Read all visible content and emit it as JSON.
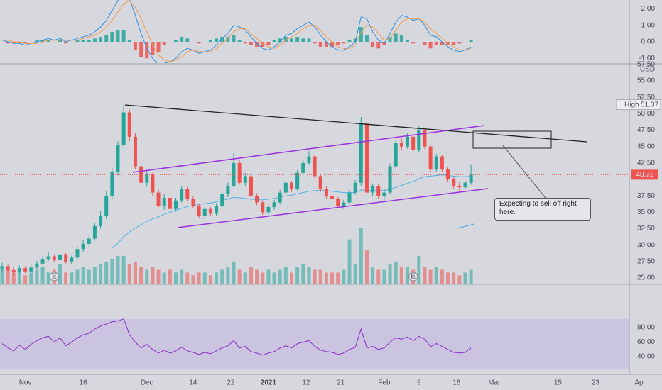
{
  "screen": {
    "price_ticks": [
      {
        "value": 55,
        "label": "55.00"
      },
      {
        "value": 52.5,
        "label": "52.50"
      },
      {
        "value": 50,
        "label": "50.00"
      },
      {
        "value": 47.5,
        "label": "47.50"
      },
      {
        "value": 45,
        "label": "45.00"
      },
      {
        "value": 42.5,
        "label": "42.50"
      },
      {
        "value": 37.5,
        "label": "37.50"
      },
      {
        "value": 35,
        "label": "35.00"
      },
      {
        "value": 32.5,
        "label": "32.50"
      },
      {
        "value": 30,
        "label": "30.00"
      },
      {
        "value": 27.5,
        "label": "27.50"
      },
      {
        "value": 25,
        "label": "25.00"
      }
    ],
    "top_partial_tick": {
      "value": 57.5,
      "label": "57.50"
    },
    "currency": "USD",
    "last_price": {
      "value": 40.72,
      "label": "40.72"
    },
    "high_tag": {
      "text": "High",
      "value": 51.37
    },
    "macd_ticks": [
      {
        "value": 2,
        "label": "2.00"
      },
      {
        "value": 1,
        "label": "1.00"
      },
      {
        "value": 0,
        "label": "0.00"
      },
      {
        "value": -1,
        "label": "-1.00"
      }
    ],
    "rsi_ticks": [
      {
        "value": 80,
        "label": "80.00"
      },
      {
        "value": 60,
        "label": "60.00"
      },
      {
        "value": 40,
        "label": "40.00"
      }
    ],
    "date_ticks": [
      {
        "value": 4,
        "label": "Nov"
      },
      {
        "value": 14,
        "label": "16"
      },
      {
        "value": 25,
        "label": "Dec"
      },
      {
        "value": 33,
        "label": "14"
      },
      {
        "value": 39.5,
        "label": "22"
      },
      {
        "value": 46,
        "label": "2021"
      },
      {
        "value": 52.5,
        "label": "12"
      },
      {
        "value": 58.5,
        "label": "21"
      },
      {
        "value": 66,
        "label": "Feb"
      },
      {
        "value": 72,
        "label": "9"
      },
      {
        "value": 78.5,
        "label": "18"
      },
      {
        "value": 85,
        "label": "Mar"
      },
      {
        "value": 96,
        "label": "15"
      },
      {
        "value": 102.5,
        "label": "23"
      },
      {
        "value": 110,
        "label": "Ap"
      }
    ],
    "earnings_marker": "E",
    "annotation": "Expecting to sell off right here.",
    "candles": [
      [
        26.5,
        27.3,
        25.8,
        26.8
      ],
      [
        26.8,
        27.0,
        25.9,
        26.2
      ],
      [
        26.2,
        26.6,
        25.4,
        25.9
      ],
      [
        25.9,
        26.9,
        25.6,
        26.5
      ],
      [
        26.5,
        26.8,
        25.7,
        26.0
      ],
      [
        26.0,
        27.0,
        25.8,
        26.6
      ],
      [
        26.6,
        27.6,
        26.3,
        27.2
      ],
      [
        27.2,
        28.3,
        27.0,
        27.9
      ],
      [
        27.9,
        28.9,
        27.6,
        28.3
      ],
      [
        28.3,
        28.6,
        27.4,
        27.8
      ],
      [
        27.8,
        29.0,
        27.5,
        28.6
      ],
      [
        28.6,
        28.8,
        27.2,
        27.5
      ],
      [
        27.5,
        28.4,
        27.1,
        28.1
      ],
      [
        28.1,
        29.8,
        27.9,
        29.4
      ],
      [
        29.4,
        30.8,
        29.0,
        30.2
      ],
      [
        30.2,
        31.6,
        29.8,
        31.0
      ],
      [
        31.0,
        33.4,
        30.7,
        32.9
      ],
      [
        32.9,
        35.2,
        32.5,
        34.5
      ],
      [
        34.5,
        38.2,
        34.0,
        37.5
      ],
      [
        37.5,
        41.8,
        37.0,
        41.2
      ],
      [
        41.2,
        45.8,
        40.6,
        45.3
      ],
      [
        45.3,
        51.37,
        45.0,
        50.2
      ],
      [
        50.2,
        50.6,
        45.8,
        46.5
      ],
      [
        46.5,
        47.0,
        41.5,
        42.0
      ],
      [
        42.0,
        42.8,
        38.8,
        39.5
      ],
      [
        39.5,
        41.3,
        38.9,
        40.8
      ],
      [
        40.8,
        41.0,
        37.5,
        38.0
      ],
      [
        38.0,
        38.6,
        35.5,
        36.0
      ],
      [
        36.0,
        37.8,
        35.4,
        37.2
      ],
      [
        37.2,
        37.6,
        35.0,
        35.5
      ],
      [
        35.5,
        37.2,
        35.1,
        36.8
      ],
      [
        36.8,
        39.0,
        36.5,
        38.5
      ],
      [
        38.5,
        38.9,
        36.6,
        37.0
      ],
      [
        37.0,
        37.4,
        35.6,
        36.0
      ],
      [
        36.0,
        36.3,
        34.1,
        34.5
      ],
      [
        34.5,
        35.9,
        34.0,
        35.5
      ],
      [
        35.5,
        35.8,
        34.4,
        34.8
      ],
      [
        34.8,
        36.4,
        34.5,
        36.0
      ],
      [
        36.0,
        38.2,
        35.8,
        37.8
      ],
      [
        37.8,
        39.5,
        37.3,
        39.0
      ],
      [
        39.0,
        44.0,
        38.8,
        42.5
      ],
      [
        42.5,
        42.9,
        39.2,
        39.5
      ],
      [
        39.5,
        41.0,
        39.0,
        40.5
      ],
      [
        40.5,
        40.8,
        37.2,
        37.5
      ],
      [
        37.5,
        37.9,
        36.1,
        36.5
      ],
      [
        36.5,
        36.8,
        34.6,
        35.0
      ],
      [
        35.0,
        36.2,
        34.3,
        35.8
      ],
      [
        35.8,
        36.9,
        35.4,
        36.5
      ],
      [
        36.5,
        38.4,
        36.2,
        38.0
      ],
      [
        38.0,
        39.9,
        37.7,
        39.5
      ],
      [
        39.5,
        39.8,
        38.1,
        38.5
      ],
      [
        38.5,
        41.4,
        38.3,
        41.0
      ],
      [
        41.0,
        42.9,
        40.7,
        42.5
      ],
      [
        42.5,
        44.3,
        42.2,
        43.5
      ],
      [
        43.5,
        43.8,
        40.2,
        40.5
      ],
      [
        40.5,
        40.9,
        38.1,
        38.5
      ],
      [
        38.5,
        38.9,
        37.1,
        37.5
      ],
      [
        37.5,
        37.9,
        36.4,
        37.0
      ],
      [
        37.0,
        37.3,
        35.6,
        36.0
      ],
      [
        36.0,
        36.9,
        35.5,
        36.5
      ],
      [
        36.5,
        38.4,
        36.2,
        38.0
      ],
      [
        38.0,
        39.9,
        37.7,
        39.5
      ],
      [
        39.5,
        49.5,
        39.0,
        48.5
      ],
      [
        48.5,
        48.9,
        37.6,
        38.0
      ],
      [
        38.0,
        39.4,
        37.5,
        39.0
      ],
      [
        39.0,
        39.3,
        37.1,
        37.5
      ],
      [
        37.5,
        38.5,
        36.6,
        38.0
      ],
      [
        38.0,
        42.4,
        37.8,
        42.0
      ],
      [
        42.0,
        46.0,
        41.7,
        45.5
      ],
      [
        45.5,
        46.2,
        44.4,
        45.0
      ],
      [
        45.0,
        47.0,
        44.7,
        46.5
      ],
      [
        46.5,
        46.9,
        44.0,
        44.5
      ],
      [
        44.5,
        48.2,
        44.2,
        47.5
      ],
      [
        47.5,
        47.9,
        44.6,
        45.0
      ],
      [
        45.0,
        45.3,
        41.1,
        41.5
      ],
      [
        41.5,
        43.9,
        41.2,
        43.5
      ],
      [
        43.5,
        43.8,
        41.2,
        41.5
      ],
      [
        41.5,
        41.8,
        39.6,
        40.0
      ],
      [
        40.0,
        40.4,
        38.6,
        39.0
      ],
      [
        39.0,
        39.6,
        38.2,
        38.8
      ],
      [
        38.8,
        39.8,
        38.5,
        39.5
      ],
      [
        39.5,
        42.3,
        39.2,
        40.72
      ]
    ],
    "volume": [
      3,
      2.5,
      2,
      2,
      1.5,
      2,
      2.5,
      3,
      2,
      2.5,
      3.5,
      2,
      2,
      2.5,
      3,
      2.5,
      3,
      3.5,
      4,
      4.5,
      5,
      5,
      3.5,
      4,
      3,
      2.5,
      3,
      2.5,
      2,
      2.5,
      2,
      2.5,
      2,
      1.5,
      2,
      2,
      1.5,
      2,
      2.5,
      3,
      4,
      2.5,
      2,
      3,
      2.5,
      2,
      2.5,
      2,
      2.5,
      3,
      2,
      3,
      3.5,
      3,
      2.5,
      2.5,
      2,
      2,
      2,
      2.5,
      8,
      3.5,
      10,
      6,
      3,
      2.5,
      2.5,
      3.5,
      4,
      3,
      3,
      2.5,
      5,
      3,
      2.5,
      3,
      2.5,
      2,
      2,
      1.5,
      2,
      2.5
    ],
    "ma": [
      null,
      null,
      null,
      null,
      null,
      null,
      null,
      null,
      null,
      null,
      null,
      null,
      null,
      null,
      null,
      null,
      null,
      null,
      null,
      29.5,
      30.3,
      31.3,
      32.0,
      32.6,
      33.1,
      33.6,
      34.0,
      34.3,
      34.7,
      35.0,
      35.3,
      35.6,
      35.9,
      36.0,
      36.2,
      36.3,
      36.4,
      36.6,
      36.8,
      37.0,
      37.3,
      37.2,
      37.1,
      37.0,
      36.9,
      36.9,
      37.0,
      37.1,
      37.3,
      37.5,
      37.6,
      37.8,
      38.0,
      38.2,
      38.3,
      38.3,
      38.3,
      38.2,
      38.1,
      38.0,
      38.0,
      38.0,
      38.4,
      38.3,
      38.3,
      38.3,
      38.3,
      38.5,
      38.8,
      39.1,
      39.4,
      39.7,
      40.1,
      40.4,
      40.5,
      40.6,
      40.7,
      40.6,
      40.5,
      40.4,
      40.4,
      40.5
    ],
    "rsi": [
      58,
      52,
      48,
      56,
      50,
      57,
      62,
      66,
      68,
      60,
      66,
      55,
      60,
      66,
      70,
      72,
      78,
      82,
      85,
      88,
      89,
      92,
      70,
      60,
      52,
      57,
      50,
      45,
      49,
      45,
      48,
      53,
      48,
      46,
      43,
      46,
      44,
      48,
      52,
      55,
      62,
      52,
      54,
      47,
      45,
      42,
      45,
      47,
      52,
      55,
      52,
      58,
      60,
      62,
      54,
      49,
      47,
      46,
      43,
      45,
      50,
      53,
      78,
      52,
      54,
      50,
      52,
      60,
      66,
      64,
      67,
      62,
      68,
      64,
      54,
      58,
      54,
      50,
      46,
      45,
      46,
      52
    ],
    "macd": [
      0.1,
      0.0,
      -0.1,
      -0.1,
      -0.2,
      -0.1,
      0.0,
      0.1,
      0.2,
      0.1,
      0.2,
      0.0,
      0.1,
      0.2,
      0.3,
      0.4,
      0.6,
      0.9,
      1.3,
      1.9,
      2.5,
      3.0,
      2.6,
      1.6,
      0.5,
      -0.4,
      -1.0,
      -1.4,
      -1.3,
      -1.2,
      -1.0,
      -0.6,
      -0.4,
      -0.5,
      -0.7,
      -0.6,
      -0.5,
      -0.2,
      0.2,
      0.5,
      1.0,
      0.9,
      0.7,
      0.3,
      -0.1,
      -0.4,
      -0.5,
      -0.3,
      0.0,
      0.4,
      0.5,
      0.8,
      1.0,
      1.2,
      0.9,
      0.4,
      0.0,
      -0.3,
      -0.5,
      -0.5,
      -0.3,
      0.0,
      1.5,
      1.4,
      0.6,
      0.1,
      -0.1,
      0.5,
      1.2,
      1.6,
      1.5,
      1.3,
      1.4,
      1.0,
      0.4,
      0.3,
      0.0,
      -0.3,
      -0.5,
      -0.6,
      -0.5,
      -0.3
    ],
    "signal": [
      0.1,
      0.1,
      0.0,
      0.0,
      -0.1,
      -0.1,
      -0.1,
      0.0,
      0.1,
      0.1,
      0.1,
      0.1,
      0.1,
      0.1,
      0.2,
      0.3,
      0.4,
      0.6,
      0.9,
      1.3,
      1.8,
      2.3,
      2.5,
      2.1,
      1.4,
      0.6,
      -0.2,
      -0.8,
      -1.1,
      -1.2,
      -1.1,
      -0.9,
      -0.6,
      -0.5,
      -0.6,
      -0.6,
      -0.6,
      -0.4,
      -0.1,
      0.2,
      0.6,
      0.8,
      0.8,
      0.5,
      0.2,
      -0.1,
      -0.3,
      -0.4,
      -0.2,
      0.1,
      0.3,
      0.5,
      0.8,
      1.0,
      1.0,
      0.7,
      0.3,
      0.0,
      -0.3,
      -0.4,
      -0.4,
      -0.2,
      0.6,
      1.0,
      0.9,
      0.5,
      0.1,
      0.2,
      0.7,
      1.2,
      1.4,
      1.4,
      1.4,
      1.2,
      0.8,
      0.5,
      0.2,
      -0.1,
      -0.3,
      -0.5,
      -0.5,
      -0.4
    ],
    "hist": [
      0,
      -0.1,
      -0.1,
      -0.1,
      -0.1,
      0,
      0.1,
      0.1,
      0.1,
      0,
      0.1,
      -0.1,
      0,
      0.1,
      0.1,
      0.1,
      0.2,
      0.3,
      0.4,
      0.6,
      0.7,
      0.7,
      0.1,
      -0.5,
      -0.9,
      -1.0,
      -0.8,
      -0.6,
      -0.2,
      0,
      0.1,
      0.3,
      0.2,
      0,
      -0.1,
      0,
      0.1,
      0.2,
      0.3,
      0.3,
      0.4,
      0.1,
      -0.1,
      -0.2,
      -0.3,
      -0.3,
      -0.2,
      0.1,
      0.2,
      0.3,
      0.2,
      0.3,
      0.2,
      0.2,
      -0.1,
      -0.3,
      -0.3,
      -0.3,
      -0.2,
      -0.1,
      0.1,
      0.2,
      0.9,
      0.4,
      -0.3,
      -0.4,
      -0.2,
      0.3,
      0.5,
      0.4,
      0.1,
      -0.1,
      0,
      -0.2,
      -0.4,
      -0.2,
      -0.2,
      -0.2,
      -0.2,
      -0.1,
      0,
      0.1
    ]
  }
}
